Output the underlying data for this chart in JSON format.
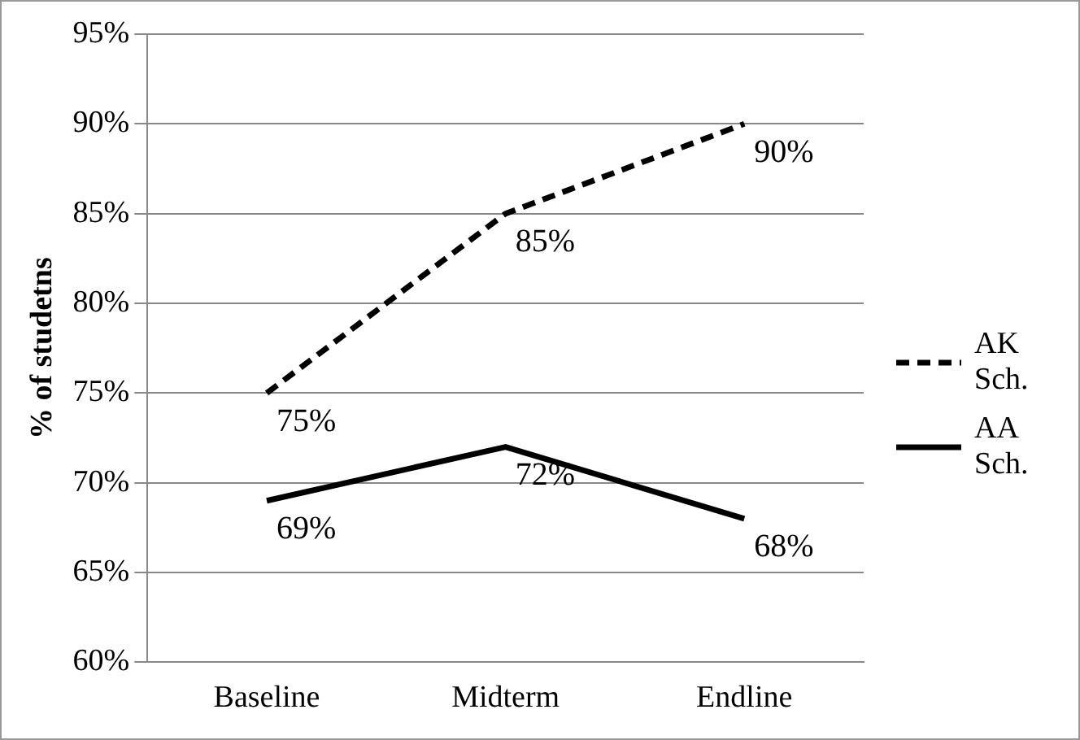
{
  "chart_data": {
    "type": "line",
    "ylabel": "% of studetns",
    "categories": [
      "Baseline",
      "Midterm",
      "Endline"
    ],
    "series": [
      {
        "name": "AK Sch.",
        "color": "#000000",
        "values": [
          75,
          85,
          90
        ],
        "value_labels": [
          "75%",
          "85%",
          "90%"
        ],
        "line_style": "dashed"
      },
      {
        "name": "AA Sch.",
        "color": "#000000",
        "values": [
          69,
          72,
          68
        ],
        "value_labels": [
          "69%",
          "72%",
          "68%"
        ],
        "line_style": "solid"
      }
    ],
    "ylim": [
      60,
      95
    ],
    "yticks": [
      {
        "value": 60,
        "label": "60%"
      },
      {
        "value": 65,
        "label": "65%"
      },
      {
        "value": 70,
        "label": "70%"
      },
      {
        "value": 75,
        "label": "75%"
      },
      {
        "value": 80,
        "label": "80%"
      },
      {
        "value": 85,
        "label": "85%"
      },
      {
        "value": 90,
        "label": "90%"
      },
      {
        "value": 95,
        "label": "95%"
      }
    ],
    "grid": "y",
    "legend": "right",
    "marker": "none"
  }
}
